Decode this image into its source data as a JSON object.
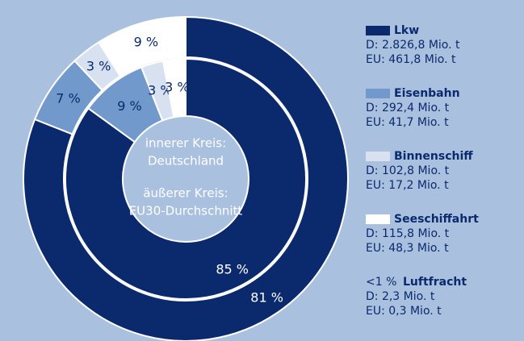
{
  "chart_data": {
    "type": "donut",
    "categories": [
      "Lkw",
      "Eisenbahn",
      "Binnenschiff",
      "Seeschiffahrt"
    ],
    "colors": [
      "#0b2a6e",
      "#7199cc",
      "#d7e1f0",
      "#ffffff"
    ],
    "series": [
      {
        "name": "Deutschland",
        "ring": "inner",
        "values": [
          85,
          9,
          3,
          3
        ],
        "value_labels": [
          "85 %",
          "9 %",
          "3 %",
          "3 %"
        ]
      },
      {
        "name": "EU30-Durchschnitt",
        "ring": "outer",
        "values": [
          81,
          7,
          3,
          9
        ],
        "value_labels": [
          "81 %",
          "7 %",
          "3 %",
          "9 %"
        ]
      }
    ],
    "center_text": [
      "innerer Kreis:",
      "Deutschland",
      "äußerer Kreis:",
      "EU30-Durchschnitt"
    ],
    "legend_details": [
      [
        "D: 2.826,8 Mio. t",
        "EU: 461,8 Mio. t"
      ],
      [
        "D: 292,4 Mio. t",
        "EU: 41,7 Mio. t"
      ],
      [
        "D: 102,8 Mio. t",
        "EU: 17,2 Mio. t"
      ],
      [
        "D: 115,8 Mio. t",
        "EU: 48,3 Mio. t"
      ]
    ],
    "extra_entry": {
      "prefix": "<1 %",
      "name": "Luftfracht",
      "lines": [
        "D: 2,3 Mio. t",
        "EU: 0,3 Mio. t"
      ]
    }
  }
}
